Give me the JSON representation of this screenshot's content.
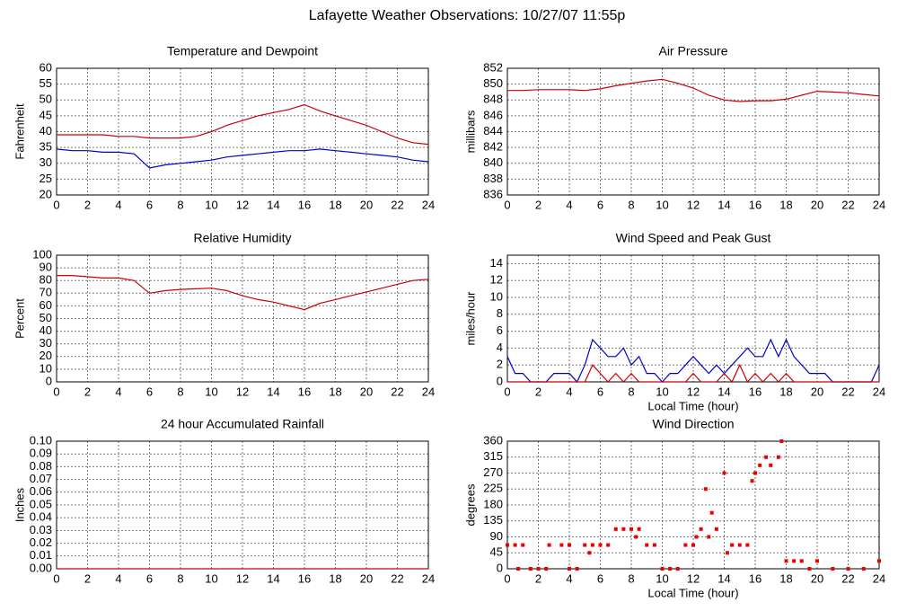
{
  "title": "Lafayette Weather Observations: 10/27/07 11:55p",
  "chart_data": [
    {
      "type": "line",
      "title": "Temperature and Dewpoint",
      "y_label": "Fahrenheit",
      "x": [
        0,
        1,
        2,
        3,
        4,
        5,
        6,
        7,
        8,
        9,
        10,
        11,
        12,
        13,
        14,
        15,
        16,
        17,
        18,
        19,
        20,
        21,
        22,
        23,
        24
      ],
      "series": [
        {
          "color": "#cc0000",
          "values": [
            39,
            39,
            39,
            39,
            38.5,
            38.5,
            38,
            38,
            38,
            38.5,
            40,
            42,
            43.5,
            45,
            46,
            47,
            48.5,
            46.5,
            45,
            43.5,
            42,
            40,
            38,
            36.5,
            36
          ]
        },
        {
          "color": "#0000cc",
          "values": [
            34.5,
            34,
            34,
            33.5,
            33.5,
            33,
            28.5,
            29.5,
            30,
            30.5,
            31,
            32,
            32.5,
            33,
            33.5,
            34,
            34,
            34.5,
            34,
            33.5,
            33,
            32.5,
            32,
            31,
            30.5
          ]
        }
      ],
      "xlim": [
        0,
        24
      ],
      "xticks": [
        0,
        2,
        4,
        6,
        8,
        10,
        12,
        14,
        16,
        18,
        20,
        22,
        24
      ],
      "ylim": [
        20,
        60
      ],
      "yticks": [
        20,
        25,
        30,
        35,
        40,
        45,
        50,
        55,
        60
      ],
      "grid": true
    },
    {
      "type": "line",
      "title": "Air Pressure",
      "y_label": "millibars",
      "x": [
        0,
        1,
        2,
        3,
        4,
        5,
        6,
        7,
        8,
        9,
        10,
        11,
        12,
        13,
        14,
        15,
        16,
        17,
        18,
        19,
        20,
        21,
        22,
        23,
        24
      ],
      "series": [
        {
          "color": "#cc0000",
          "values": [
            849.2,
            849.2,
            849.3,
            849.3,
            849.3,
            849.2,
            849.4,
            849.8,
            850.1,
            850.4,
            850.6,
            850.1,
            849.5,
            848.6,
            848.0,
            847.8,
            847.9,
            847.9,
            848.1,
            848.6,
            849.1,
            849.0,
            848.9,
            848.7,
            848.5
          ]
        }
      ],
      "xlim": [
        0,
        24
      ],
      "xticks": [
        0,
        2,
        4,
        6,
        8,
        10,
        12,
        14,
        16,
        18,
        20,
        22,
        24
      ],
      "ylim": [
        836,
        852
      ],
      "yticks": [
        836,
        838,
        840,
        842,
        844,
        846,
        848,
        850,
        852
      ],
      "grid": true
    },
    {
      "type": "line",
      "title": "Relative Humidity",
      "y_label": "Percent",
      "x": [
        0,
        1,
        2,
        3,
        4,
        5,
        6,
        7,
        8,
        9,
        10,
        11,
        12,
        13,
        14,
        15,
        16,
        17,
        18,
        19,
        20,
        21,
        22,
        23,
        24
      ],
      "series": [
        {
          "color": "#cc0000",
          "values": [
            84,
            84,
            83,
            82,
            82,
            80,
            70,
            72,
            73,
            73.5,
            74,
            72,
            68,
            65,
            63,
            60,
            57,
            62,
            65,
            68,
            71,
            74,
            77,
            80,
            81
          ]
        }
      ],
      "xlim": [
        0,
        24
      ],
      "xticks": [
        0,
        2,
        4,
        6,
        8,
        10,
        12,
        14,
        16,
        18,
        20,
        22,
        24
      ],
      "ylim": [
        0,
        100
      ],
      "yticks": [
        0,
        10,
        20,
        30,
        40,
        50,
        60,
        70,
        80,
        90,
        100
      ],
      "grid": true
    },
    {
      "type": "line",
      "title": "Wind Speed and Peak Gust",
      "y_label": "miles/hour",
      "x_label": "Local Time (hour)",
      "x": [
        0,
        0.5,
        1,
        1.5,
        2,
        2.5,
        3,
        3.5,
        4,
        4.5,
        5,
        5.5,
        6,
        6.5,
        7,
        7.5,
        8,
        8.5,
        9,
        9.5,
        10,
        10.5,
        11,
        11.5,
        12,
        12.5,
        13,
        13.5,
        14,
        14.5,
        15,
        15.5,
        16,
        16.5,
        17,
        17.5,
        18,
        18.5,
        19,
        19.5,
        20,
        20.5,
        21,
        21.5,
        22,
        22.5,
        23,
        23.5,
        24
      ],
      "series": [
        {
          "color": "#0000cc",
          "values": [
            3,
            1,
            1,
            0,
            0,
            0,
            1,
            1,
            1,
            0,
            2,
            5,
            4,
            3,
            3,
            4,
            2,
            3,
            1,
            1,
            0,
            1,
            1,
            2,
            3,
            2,
            1,
            2,
            1,
            2,
            3,
            4,
            3,
            3,
            5,
            3,
            5,
            3,
            2,
            1,
            1,
            1,
            0,
            0,
            0,
            0,
            0,
            0,
            2
          ]
        },
        {
          "color": "#cc0000",
          "values": [
            0,
            0,
            0,
            0,
            0,
            0,
            0,
            0,
            0,
            0,
            0,
            2,
            1,
            0,
            1,
            0,
            1,
            0,
            0,
            0,
            0,
            0,
            0,
            0,
            1,
            0,
            0,
            0,
            1,
            0,
            2,
            0,
            1,
            0,
            1,
            0,
            1,
            0,
            0,
            0,
            0,
            0,
            0,
            0,
            0,
            0,
            0,
            0,
            0
          ]
        }
      ],
      "xlim": [
        0,
        24
      ],
      "xticks": [
        0,
        2,
        4,
        6,
        8,
        10,
        12,
        14,
        16,
        18,
        20,
        22,
        24
      ],
      "ylim": [
        0,
        15
      ],
      "yticks": [
        0,
        2,
        4,
        6,
        8,
        10,
        12,
        14
      ],
      "grid": true
    },
    {
      "type": "line",
      "title": "24 hour Accumulated Rainfall",
      "y_label": "Inches",
      "x": [
        0,
        24
      ],
      "series": [
        {
          "color": "#cc0000",
          "values": [
            0,
            0
          ]
        }
      ],
      "xlim": [
        0,
        24
      ],
      "xticks": [
        0,
        2,
        4,
        6,
        8,
        10,
        12,
        14,
        16,
        18,
        20,
        22,
        24
      ],
      "ylim": [
        0,
        0.1
      ],
      "yticks": [
        {
          "value": 0,
          "label": "0.00"
        },
        0.01,
        0.02,
        0.03,
        0.04,
        0.05,
        0.06,
        0.07,
        0.08,
        0.09,
        {
          "value": 0.1,
          "label": "0.10"
        }
      ],
      "grid": true
    },
    {
      "type": "scatter",
      "title": "Wind Direction",
      "y_label": "degrees",
      "x_label": "Local Time (hour)",
      "x": [
        0,
        0.5,
        1,
        0.7,
        1.5,
        2,
        2.5,
        2.7,
        3.5,
        4,
        4,
        4.5,
        5,
        5.5,
        6,
        5.3,
        6.5,
        7,
        7.5,
        8,
        8.5,
        8.3,
        9,
        9.5,
        10,
        10.5,
        11,
        11.5,
        12,
        12.2,
        12.5,
        12.8,
        13,
        13.2,
        13.5,
        14,
        14.2,
        14.5,
        15,
        15.5,
        15.8,
        16,
        16.3,
        16.7,
        17,
        17.5,
        17.7,
        18,
        18.5,
        19,
        19.5,
        20,
        21,
        22,
        23,
        24
      ],
      "series": [
        {
          "color": "#ee0000",
          "values": [
            67,
            67,
            67,
            0,
            0,
            0,
            0,
            67,
            67,
            67,
            0,
            0,
            67,
            67,
            67,
            45,
            67,
            112,
            112,
            112,
            112,
            90,
            67,
            67,
            0,
            0,
            0,
            67,
            67,
            90,
            112,
            225,
            90,
            158,
            112,
            270,
            45,
            67,
            67,
            67,
            248,
            270,
            292,
            315,
            292,
            315,
            360,
            22,
            22,
            22,
            0,
            22,
            0,
            0,
            0,
            22
          ]
        }
      ],
      "xlim": [
        0,
        24
      ],
      "xticks": [
        0,
        2,
        4,
        6,
        8,
        10,
        12,
        14,
        16,
        18,
        20,
        22,
        24
      ],
      "ylim": [
        0,
        360
      ],
      "yticks": [
        0,
        45,
        90,
        135,
        180,
        225,
        270,
        315,
        360
      ],
      "grid": true
    }
  ]
}
